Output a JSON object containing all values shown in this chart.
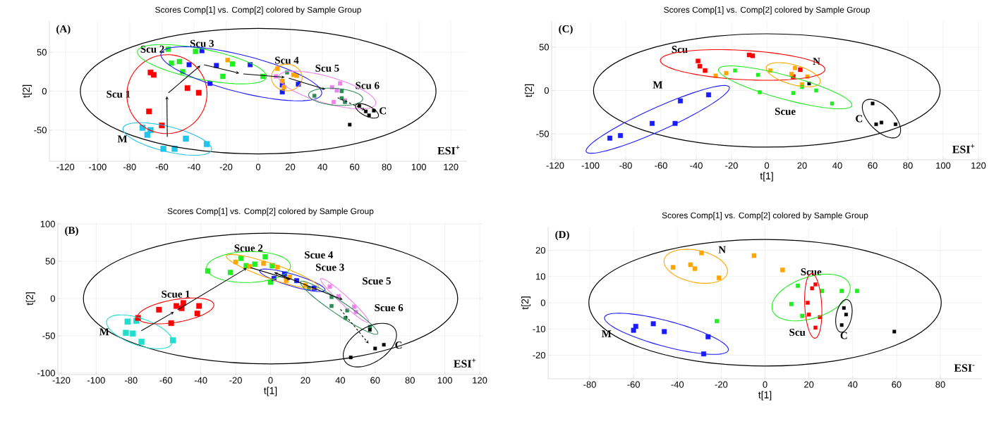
{
  "chart_data": [
    {
      "type": "scatter",
      "title": "Scores Comp[1] vs. Comp[2] colored by Sample Group",
      "ylabel": "t[2]",
      "annotations": [
        "(A)",
        "ESI$^{+}$"
      ],
      "xlim": [
        -130,
        130
      ],
      "ylim": [
        -90,
        90
      ],
      "xticks": [
        -120,
        -100,
        -80,
        -60,
        -40,
        -20,
        0,
        20,
        40,
        60,
        80,
        100,
        120
      ],
      "yticks": [
        -50,
        0,
        50
      ],
      "grid": true,
      "marker": "square",
      "series": [
        {
          "name": "M",
          "color": "#22c4e8",
          "x": [
            -72,
            -67,
            -69,
            -59,
            -52,
            -45,
            -32
          ],
          "values": [
            -47,
            -50,
            -56,
            -74,
            -74,
            -61,
            -68
          ]
        },
        {
          "name": "Scu 1",
          "color": "#ff0000",
          "x": [
            -67,
            -65,
            -44,
            -37,
            -68,
            -60
          ],
          "values": [
            24,
            21,
            4,
            -2,
            -26,
            -44
          ]
        },
        {
          "name": "Scu 2",
          "color": "#22ee22",
          "x": [
            -56,
            -54,
            -49,
            -47,
            -39,
            -22,
            -16,
            3
          ],
          "values": [
            54,
            36,
            38,
            25,
            51,
            19,
            35,
            19
          ]
        },
        {
          "name": "Scu 3",
          "color": "#1a1aff",
          "x": [
            -35,
            -43,
            -30,
            -5,
            15,
            25,
            15,
            -26
          ],
          "values": [
            52,
            34,
            10,
            34,
            8,
            9,
            -1,
            33
          ]
        },
        {
          "name": "Scu 4",
          "color": "#ffa500",
          "x": [
            -19,
            12,
            22,
            24,
            15,
            16
          ],
          "values": [
            40,
            29,
            21,
            20,
            13,
            5
          ]
        },
        {
          "name": "Scu 5",
          "color": "#ee82ee",
          "x": [
            46,
            49,
            51,
            47,
            54,
            11
          ],
          "values": [
            5,
            1,
            10,
            -14,
            -12,
            19
          ]
        },
        {
          "name": "Scu 6",
          "color": "#2e8b57",
          "x": [
            18,
            35,
            52,
            52,
            54
          ],
          "values": [
            24,
            -6,
            0,
            -9,
            -14
          ]
        },
        {
          "name": "C",
          "color": "#000000",
          "x": [
            63,
            67,
            69,
            72,
            57
          ],
          "values": [
            -19,
            -26,
            -31,
            -25,
            -43
          ]
        }
      ]
    },
    {
      "type": "scatter",
      "title": "Scores Comp[1] vs. Comp[2] colored by Sample Group",
      "xlabel": "t[1]",
      "ylabel": "t[2]",
      "annotations": [
        "(B)",
        "ESI$^{+}$"
      ],
      "xlim": [
        -122,
        122
      ],
      "ylim": [
        -102,
        102
      ],
      "xticks": [
        -120,
        -100,
        -80,
        -60,
        -40,
        -20,
        0,
        20,
        40,
        60,
        80,
        100,
        120
      ],
      "yticks": [
        -100,
        -50,
        0,
        50,
        100
      ],
      "grid": true,
      "marker": "square",
      "series": [
        {
          "name": "M",
          "color": "#22ddcc",
          "x": [
            -82,
            -77,
            -83,
            -79,
            -74,
            -56
          ],
          "values": [
            -31,
            -30,
            -46,
            -47,
            -58,
            -56
          ]
        },
        {
          "name": "Scue 1",
          "color": "#ff0000",
          "x": [
            -64,
            -54,
            -51,
            -50,
            -41,
            -42,
            -57,
            -76
          ],
          "values": [
            -15,
            -10,
            -13,
            -6,
            -10,
            -20,
            -33,
            -26
          ]
        },
        {
          "name": "Scue 2",
          "color": "#22ee22",
          "x": [
            -36,
            -17,
            -9,
            -3,
            1,
            -14,
            -23,
            0
          ],
          "values": [
            37,
            54,
            46,
            56,
            44,
            44,
            35,
            22
          ]
        },
        {
          "name": "Scue 3",
          "color": "#1a1aff",
          "x": [
            8,
            2,
            15,
            25
          ],
          "values": [
            33,
            27,
            24,
            14
          ]
        },
        {
          "name": "Scue 4",
          "color": "#ffa500",
          "x": [
            -20,
            -12,
            -4,
            4,
            11,
            9,
            20
          ],
          "values": [
            49,
            43,
            47,
            42,
            29,
            24,
            18
          ]
        },
        {
          "name": "Scue 5",
          "color": "#ee82ee",
          "x": [
            34,
            39,
            48,
            49
          ],
          "values": [
            16,
            3,
            -11,
            -18
          ]
        },
        {
          "name": "Scue 6",
          "color": "#2e8b57",
          "x": [
            22,
            35,
            35,
            44,
            43,
            57
          ],
          "values": [
            14,
            2,
            -10,
            -16,
            -26,
            -38
          ]
        },
        {
          "name": "C",
          "color": "#000000",
          "x": [
            57,
            60,
            65,
            46
          ],
          "values": [
            -42,
            -67,
            -62,
            -79
          ]
        }
      ]
    },
    {
      "type": "scatter",
      "title": "Scores Comp[1] vs. Comp[2] colored by Sample Group",
      "xlabel": "t[1]",
      "ylabel": "t[2]",
      "annotations": [
        "(C)",
        "ESI$^{+}$"
      ],
      "xlim": [
        -122,
        122
      ],
      "ylim": [
        -80,
        80
      ],
      "xticks": [
        -120,
        -100,
        -80,
        -60,
        -40,
        -20,
        0,
        20,
        40,
        60,
        80,
        100,
        120
      ],
      "yticks": [
        -50,
        0,
        50
      ],
      "grid": true,
      "marker": "square",
      "series": [
        {
          "name": "M",
          "color": "#1a1aff",
          "x": [
            -89,
            -83,
            -65,
            -52,
            -49,
            -33
          ],
          "values": [
            -55,
            -52,
            -38,
            -38,
            -12,
            -5
          ]
        },
        {
          "name": "Scu",
          "color": "#ff0000",
          "x": [
            -39,
            -38,
            -35,
            -10,
            -8,
            19,
            15
          ],
          "values": [
            34,
            28,
            23,
            41,
            40,
            24,
            16
          ]
        },
        {
          "name": "N",
          "color": "#ffa500",
          "x": [
            -29,
            -23,
            2,
            14,
            16,
            23,
            20
          ],
          "values": [
            17,
            20,
            23,
            19,
            26,
            16,
            7
          ]
        },
        {
          "name": "Scue",
          "color": "#22ee22",
          "x": [
            -18,
            -5,
            -4,
            15,
            20,
            28,
            37
          ],
          "values": [
            23,
            18,
            -2,
            -3,
            4,
            0,
            -15
          ]
        },
        {
          "name": "C",
          "color": "#000000",
          "x": [
            60,
            62,
            65,
            73,
            24
          ],
          "values": [
            -15,
            -39,
            -37,
            -39,
            8
          ]
        }
      ]
    },
    {
      "type": "scatter",
      "title": "Scores Comp[1] vs. Comp[2] colored by Sample Group",
      "xlabel": "t[1]",
      "ylabel": "t[2]",
      "annotations": [
        "(D)",
        "ESI$^{-}$"
      ],
      "xlim": [
        -99,
        99
      ],
      "ylim": [
        -29,
        29
      ],
      "xticks": [
        -80,
        -60,
        -40,
        -20,
        0,
        20,
        40,
        60,
        80
      ],
      "yticks": [
        -20,
        -10,
        0,
        10,
        20
      ],
      "grid": true,
      "marker": "square",
      "series": [
        {
          "name": "M",
          "color": "#1a1aff",
          "x": [
            -59,
            -60,
            -51,
            -46,
            -26,
            -28
          ],
          "values": [
            -9,
            -10.5,
            -8,
            -11,
            -13,
            -19.5
          ]
        },
        {
          "name": "N",
          "color": "#ffa500",
          "x": [
            -42,
            -34,
            -32,
            -29,
            -21,
            -5,
            8
          ],
          "values": [
            13.5,
            14.5,
            13,
            19,
            9.5,
            18,
            12.5
          ]
        },
        {
          "name": "Scue",
          "color": "#22ee22",
          "x": [
            -22,
            12,
            15,
            17,
            26,
            35,
            42
          ],
          "values": [
            -7,
            -0.5,
            6.5,
            -5,
            4.5,
            4.5,
            4.5
          ]
        },
        {
          "name": "Scu",
          "color": "#ff0000",
          "x": [
            19.5,
            21.5,
            23,
            20,
            25,
            23
          ],
          "values": [
            0,
            5.5,
            7,
            -4.5,
            -5.5,
            -9.5
          ]
        },
        {
          "name": "C",
          "color": "#000000",
          "x": [
            36,
            37,
            35,
            59
          ],
          "values": [
            -2,
            -4.5,
            -8.5,
            -11
          ]
        }
      ]
    }
  ]
}
